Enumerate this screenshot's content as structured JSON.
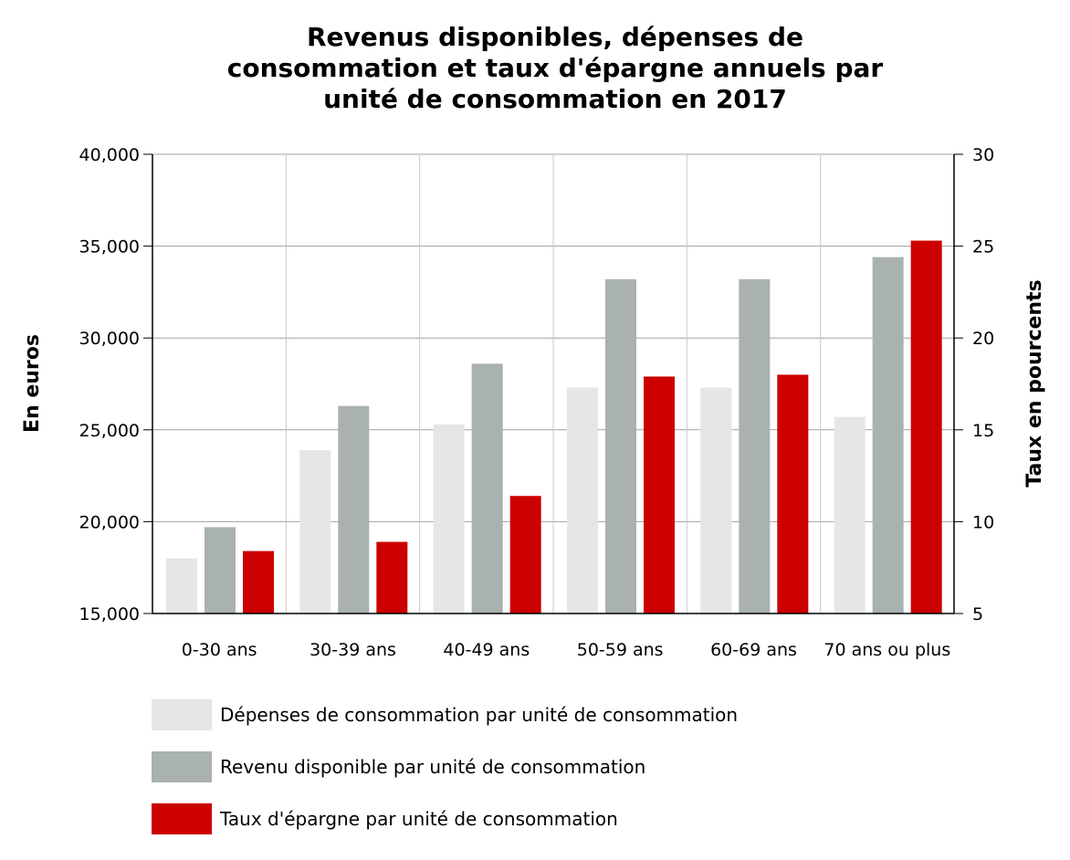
{
  "chart_data": {
    "type": "bar",
    "title": "Revenus disponibles, dépenses de consommation et taux d'épargne annuels par unité de consommation en 2017",
    "title_lines": [
      "Revenus disponibles, dépenses de",
      "consommation et taux d'épargne annuels par",
      "unité de consommation en 2017"
    ],
    "categories": [
      "0-30 ans",
      "30-39 ans",
      "40-49 ans",
      "50-59 ans",
      "60-69 ans",
      "70 ans ou plus"
    ],
    "ylabel": "En euros",
    "y2label": "Taux en pourcents",
    "ylim": [
      15000,
      40000
    ],
    "y2lim": [
      5,
      30
    ],
    "yticks": [
      "15,000",
      "20,000",
      "25,000",
      "30,000",
      "35,000",
      "40,000"
    ],
    "y2ticks": [
      "5",
      "10",
      "15",
      "20",
      "25",
      "30"
    ],
    "grid": true,
    "legend_position": "bottom",
    "series": [
      {
        "name": "Dépenses de consommation par unité de consommation",
        "axis": "left",
        "color": "#e6e6e6",
        "values": [
          18000,
          23900,
          25300,
          27300,
          27300,
          25700
        ]
      },
      {
        "name": "Revenu disponible par unité de consommation",
        "axis": "left",
        "color": "#a9b1b1",
        "values": [
          19700,
          26300,
          28600,
          33200,
          33200,
          34400
        ]
      },
      {
        "name": "Taux d'épargne par unité de consommation",
        "axis": "right",
        "color": "#cc0000",
        "values": [
          8.4,
          8.9,
          11.4,
          17.9,
          18.0,
          25.3
        ]
      }
    ]
  }
}
